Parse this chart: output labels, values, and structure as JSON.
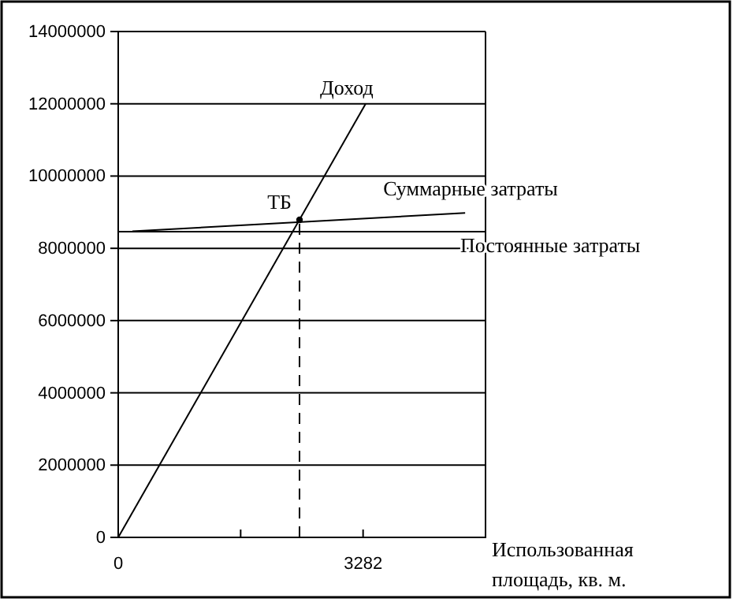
{
  "chart_data": {
    "type": "line",
    "xlabel": "Использованная площадь, кв. м.",
    "xlim": [
      0,
      4923
    ],
    "xticks": [
      0,
      {
        "value": 1641,
        "label": null
      },
      3282,
      {
        "value": 4923,
        "label": null
      }
    ],
    "ylim": [
      0,
      14000000
    ],
    "yticks": [
      0,
      2000000,
      4000000,
      6000000,
      8000000,
      10000000,
      12000000,
      14000000
    ],
    "grid": "y",
    "marker": "none",
    "series": [
      {
        "name": "Доход",
        "color": "#000000",
        "x": [
          0,
          3316
        ],
        "values": [
          0,
          12000000
        ]
      },
      {
        "name": "Суммарные затраты",
        "color": "#000000",
        "x": [
          190,
          4650
        ],
        "values": [
          8470000,
          8980000
        ]
      },
      {
        "name": "Постоянные затраты",
        "color": "#000000",
        "x": [
          0,
          4923
        ],
        "values": [
          8460000,
          8460000
        ]
      },
      {
        "color": "#000000",
        "x": [
          2430,
          2430
        ],
        "values": [
          0,
          8790000
        ],
        "line_style": "dashed"
      },
      {
        "type": "scatter",
        "color": "#000000",
        "x": [
          2430
        ],
        "values": [
          8790000
        ],
        "marker": "circle"
      }
    ],
    "annotations": [
      {
        "text": "ТБ",
        "x": 2430,
        "y": 8790000
      }
    ]
  }
}
